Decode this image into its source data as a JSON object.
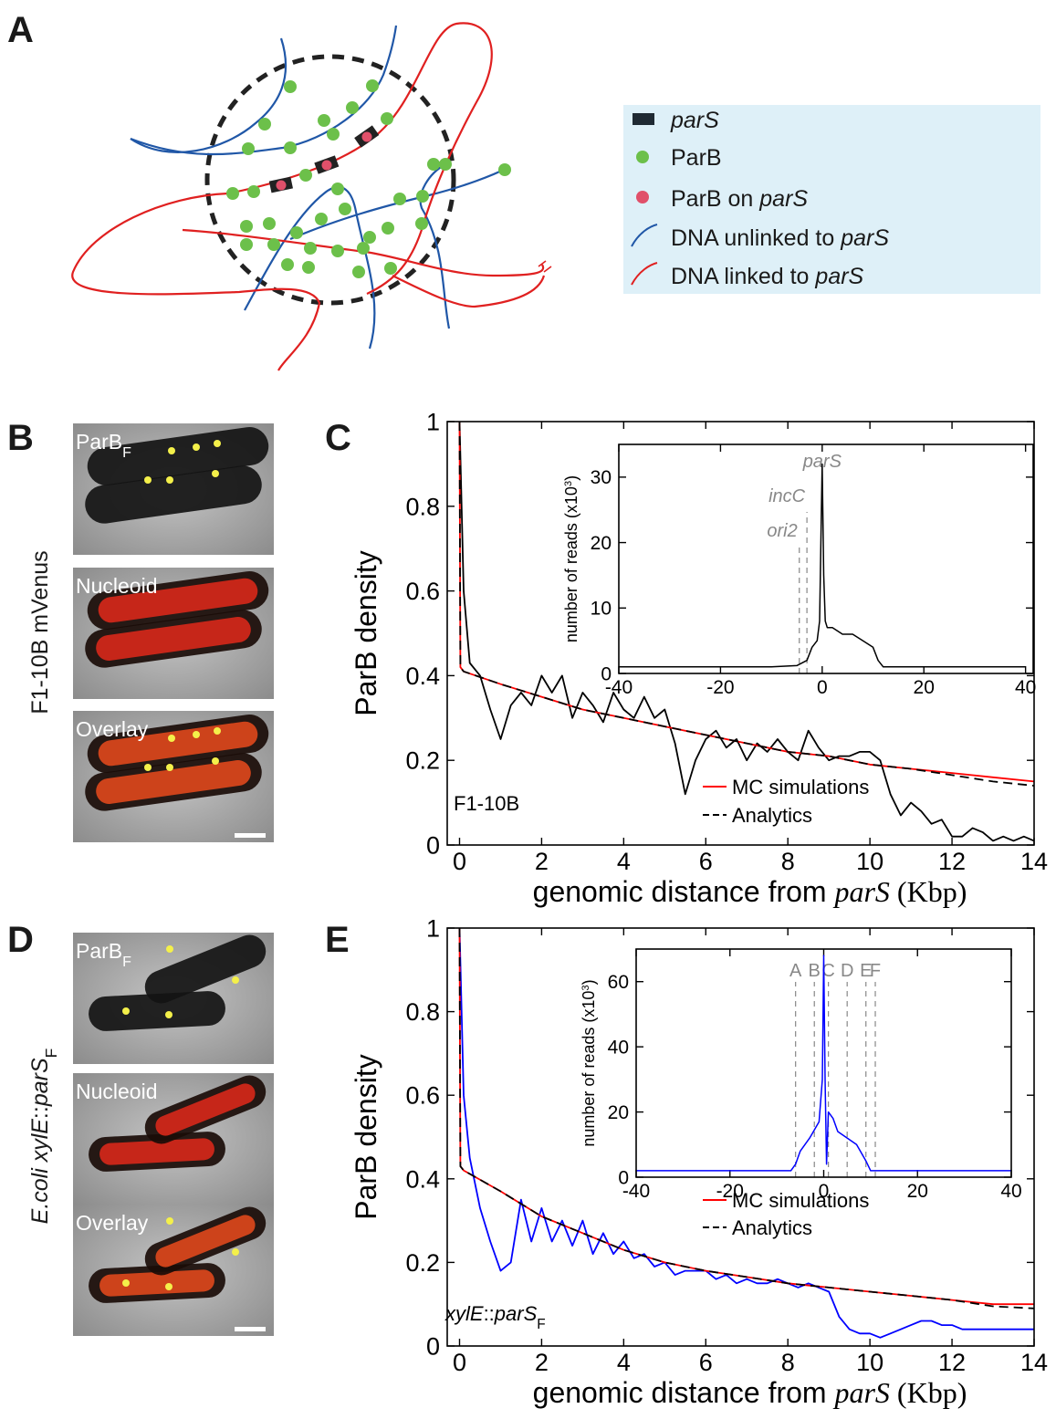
{
  "panel_labels": [
    "A",
    "B",
    "C",
    "D",
    "E"
  ],
  "legend_a": [
    [
      {
        "text": "parS",
        "style": "italic"
      }
    ],
    [
      {
        "text": "ParB",
        "style": "plain"
      }
    ],
    [
      {
        "text": "ParB on ",
        "style": "plain"
      },
      {
        "text": "parS",
        "style": "italic"
      }
    ],
    [
      {
        "text": "DNA unlinked to ",
        "style": "plain"
      },
      {
        "text": "parS",
        "style": "italic"
      }
    ],
    [
      {
        "text": "DNA linked to ",
        "style": "plain"
      },
      {
        "text": "parS",
        "style": "italic"
      }
    ]
  ],
  "microscopy": [
    {
      "side_label": [
        {
          "text": "F1-10B mVenus",
          "style": "plain"
        }
      ],
      "images": [
        {
          "label": [
            {
              "text": "ParB",
              "style": "plain"
            },
            {
              "text": "F",
              "style": "sub"
            }
          ]
        },
        {
          "label": [
            {
              "text": "Nucleoid",
              "style": "plain"
            }
          ]
        },
        {
          "label": [
            {
              "text": "Overlay",
              "style": "plain"
            }
          ]
        }
      ]
    },
    {
      "side_label": [
        {
          "text": "E.coli xylE",
          "style": "italic"
        },
        {
          "text": "::",
          "style": "plain"
        },
        {
          "text": "parS",
          "style": "italic"
        },
        {
          "text": "F",
          "style": "sub"
        }
      ],
      "images": [
        {
          "label": [
            {
              "text": "ParB",
              "style": "plain"
            },
            {
              "text": "F",
              "style": "sub"
            }
          ]
        },
        {
          "label": [
            {
              "text": "Nucleoid",
              "style": "plain"
            }
          ]
        },
        {
          "label": [
            {
              "text": "Overlay",
              "style": "plain"
            }
          ]
        }
      ]
    }
  ],
  "chart_data": [
    {
      "type": "line",
      "xlabel": [
        {
          "text": "genomic distance from ",
          "style": "plain"
        },
        {
          "text": "parS",
          "style": "serif-italic"
        },
        {
          "text": "  (Kbp)",
          "style": "serif"
        }
      ],
      "ylabel": [
        {
          "text": "ParB density",
          "style": "plain"
        }
      ],
      "label": [
        {
          "text": "F1-10B",
          "style": "plain"
        }
      ],
      "legend": "lower right",
      "xlim": [
        -0.3,
        14
      ],
      "ylim": [
        0,
        1
      ],
      "xticks": [
        0,
        2,
        4,
        6,
        8,
        10,
        12,
        14
      ],
      "yticks": [
        0,
        0.2,
        0.4,
        0.6,
        0.8,
        1
      ],
      "series": [
        {
          "color": "#000000",
          "x": [
            0,
            0.1,
            0.25,
            0.5,
            0.75,
            1,
            1.25,
            1.5,
            1.75,
            2,
            2.25,
            2.5,
            2.75,
            3,
            3.25,
            3.5,
            3.75,
            4,
            4.25,
            4.5,
            4.75,
            5,
            5.25,
            5.5,
            5.75,
            6,
            6.25,
            6.5,
            6.75,
            7,
            7.25,
            7.5,
            7.75,
            8,
            8.25,
            8.5,
            8.75,
            9,
            9.25,
            9.5,
            9.75,
            10,
            10.25,
            10.5,
            10.75,
            11,
            11.25,
            11.5,
            11.75,
            12,
            12.25,
            12.5,
            12.75,
            13,
            13.25,
            13.5,
            13.75,
            14
          ],
          "values": [
            1.0,
            0.6,
            0.43,
            0.4,
            0.32,
            0.25,
            0.33,
            0.36,
            0.33,
            0.4,
            0.36,
            0.4,
            0.3,
            0.36,
            0.33,
            0.29,
            0.36,
            0.32,
            0.3,
            0.35,
            0.3,
            0.32,
            0.24,
            0.12,
            0.2,
            0.25,
            0.27,
            0.23,
            0.25,
            0.2,
            0.24,
            0.22,
            0.25,
            0.22,
            0.2,
            0.27,
            0.23,
            0.2,
            0.21,
            0.21,
            0.22,
            0.22,
            0.2,
            0.12,
            0.07,
            0.1,
            0.08,
            0.05,
            0.06,
            0.02,
            0.02,
            0.04,
            0.03,
            0.01,
            0.02,
            0.01,
            0.02,
            0.01
          ]
        },
        {
          "name": "MC simulations",
          "color": "#ff0000",
          "x": [
            0,
            0.02,
            0.1,
            1,
            2,
            3,
            4,
            5,
            6,
            7,
            8,
            9,
            10,
            11,
            12,
            13,
            14
          ],
          "values": [
            1.0,
            0.42,
            0.41,
            0.38,
            0.35,
            0.32,
            0.3,
            0.28,
            0.26,
            0.24,
            0.22,
            0.21,
            0.19,
            0.18,
            0.17,
            0.16,
            0.15
          ]
        },
        {
          "name": "Analytics",
          "color": "#000000",
          "dash": true,
          "x": [
            0,
            0.02,
            0.1,
            1,
            2,
            3,
            4,
            5,
            6,
            7,
            8,
            9,
            10,
            11,
            12,
            13,
            14
          ],
          "values": [
            1.0,
            0.42,
            0.41,
            0.38,
            0.35,
            0.32,
            0.3,
            0.28,
            0.26,
            0.24,
            0.22,
            0.21,
            0.19,
            0.18,
            0.165,
            0.15,
            0.14
          ]
        }
      ]
    },
    {
      "type": "line",
      "ylabel": [
        {
          "text": "number of reads (x10",
          "style": "plain"
        },
        {
          "text": "3",
          "style": "sup"
        },
        {
          "text": ")",
          "style": "plain"
        }
      ],
      "xlim": [
        -40,
        41.5
      ],
      "ylim": [
        0,
        35
      ],
      "xticks": [
        -40,
        -20,
        0,
        20,
        40
      ],
      "yticks": [
        0,
        10,
        20,
        30
      ],
      "markers": [
        {
          "label": "parS",
          "x": 0,
          "line": false
        },
        {
          "label": "incC",
          "x": -3,
          "line": true
        },
        {
          "label": "ori2",
          "x": -4.5,
          "line": true
        }
      ],
      "series": [
        {
          "color": "#000000",
          "x": [
            -40,
            -30,
            -20,
            -10,
            -5,
            -3,
            -2,
            -1,
            -0.5,
            0,
            0.3,
            0.6,
            1,
            2,
            4,
            6,
            8,
            10,
            11,
            12,
            20,
            30,
            40
          ],
          "values": [
            1,
            1,
            1,
            1,
            1.2,
            2,
            4,
            5,
            8,
            32,
            15,
            8,
            7,
            7,
            6,
            6,
            5,
            4,
            2,
            1,
            1,
            1,
            1
          ]
        }
      ]
    },
    {
      "type": "line",
      "xlabel": [
        {
          "text": "genomic distance from ",
          "style": "plain"
        },
        {
          "text": "parS",
          "style": "serif-italic"
        },
        {
          "text": " (Kbp)",
          "style": "serif"
        }
      ],
      "ylabel": [
        {
          "text": "ParB density",
          "style": "plain"
        }
      ],
      "label": [
        {
          "text": "xylE",
          "style": "italic"
        },
        {
          "text": "::",
          "style": "plain"
        },
        {
          "text": "parS",
          "style": "italic"
        },
        {
          "text": "F",
          "style": "sub"
        }
      ],
      "legend": "lower right",
      "xlim": [
        -0.3,
        14
      ],
      "ylim": [
        0,
        1
      ],
      "xticks": [
        0,
        2,
        4,
        6,
        8,
        10,
        12,
        14
      ],
      "yticks": [
        0,
        0.2,
        0.4,
        0.6,
        0.8,
        1
      ],
      "series": [
        {
          "color": "#0000ff",
          "x": [
            0,
            0.1,
            0.25,
            0.5,
            0.75,
            1,
            1.25,
            1.5,
            1.75,
            2,
            2.25,
            2.5,
            2.75,
            3,
            3.25,
            3.5,
            3.75,
            4,
            4.25,
            4.5,
            4.75,
            5,
            5.25,
            5.5,
            5.75,
            6,
            6.25,
            6.5,
            6.75,
            7,
            7.25,
            7.5,
            7.75,
            8,
            8.25,
            8.5,
            8.75,
            9,
            9.25,
            9.5,
            9.75,
            10,
            10.25,
            10.5,
            10.75,
            11,
            11.25,
            11.5,
            11.75,
            12,
            12.25,
            12.5,
            12.75,
            13,
            13.25,
            13.5,
            13.75,
            14
          ],
          "values": [
            1.0,
            0.6,
            0.45,
            0.33,
            0.25,
            0.18,
            0.2,
            0.35,
            0.25,
            0.33,
            0.25,
            0.3,
            0.24,
            0.3,
            0.22,
            0.27,
            0.22,
            0.25,
            0.21,
            0.22,
            0.19,
            0.2,
            0.17,
            0.18,
            0.18,
            0.18,
            0.16,
            0.17,
            0.15,
            0.16,
            0.15,
            0.15,
            0.16,
            0.15,
            0.14,
            0.15,
            0.14,
            0.13,
            0.07,
            0.04,
            0.03,
            0.03,
            0.02,
            0.03,
            0.04,
            0.05,
            0.06,
            0.06,
            0.05,
            0.05,
            0.04,
            0.04,
            0.04,
            0.04,
            0.04,
            0.04,
            0.04,
            0.04
          ]
        },
        {
          "name": "MC simulations",
          "color": "#ff0000",
          "x": [
            0,
            0.02,
            0.1,
            1,
            2,
            3,
            4,
            5,
            6,
            7,
            8,
            9,
            10,
            11,
            12,
            13,
            14
          ],
          "values": [
            1.0,
            0.43,
            0.42,
            0.37,
            0.31,
            0.27,
            0.23,
            0.2,
            0.18,
            0.165,
            0.15,
            0.14,
            0.13,
            0.12,
            0.11,
            0.1,
            0.1
          ]
        },
        {
          "name": "Analytics",
          "color": "#000000",
          "dash": true,
          "x": [
            0,
            0.02,
            0.1,
            1,
            2,
            3,
            4,
            5,
            6,
            7,
            8,
            9,
            10,
            11,
            12,
            13,
            14
          ],
          "values": [
            1.0,
            0.43,
            0.42,
            0.37,
            0.31,
            0.27,
            0.23,
            0.2,
            0.18,
            0.165,
            0.15,
            0.14,
            0.13,
            0.12,
            0.11,
            0.095,
            0.09
          ]
        }
      ]
    },
    {
      "type": "line",
      "ylabel": [
        {
          "text": "number of reads (x10",
          "style": "plain"
        },
        {
          "text": "3",
          "style": "sup"
        },
        {
          "text": ")",
          "style": "plain"
        }
      ],
      "xlim": [
        -40,
        40
      ],
      "ylim": [
        0,
        70
      ],
      "xticks": [
        -40,
        -20,
        0,
        20,
        40
      ],
      "yticks": [
        0,
        20,
        40,
        60
      ],
      "markers": [
        {
          "label": "A",
          "x": -6,
          "line": true
        },
        {
          "label": "B",
          "x": -2,
          "line": true
        },
        {
          "label": "C",
          "x": 1,
          "line": true
        },
        {
          "label": "D",
          "x": 5,
          "line": true
        },
        {
          "label": "E",
          "x": 9,
          "line": true
        },
        {
          "label": "F",
          "x": 11,
          "line": true
        }
      ],
      "series": [
        {
          "color": "#0000ff",
          "x": [
            -40,
            -30,
            -20,
            -10,
            -7,
            -6,
            -5,
            -3,
            -1,
            -0.3,
            0,
            0.3,
            0.6,
            1,
            2,
            3,
            5,
            7,
            9,
            10,
            20,
            30,
            40
          ],
          "values": [
            2,
            2,
            2,
            2,
            2,
            4,
            8,
            12,
            17,
            30,
            68,
            30,
            4,
            20,
            18,
            14,
            12,
            10,
            5,
            2,
            2,
            2,
            2
          ]
        }
      ]
    }
  ]
}
